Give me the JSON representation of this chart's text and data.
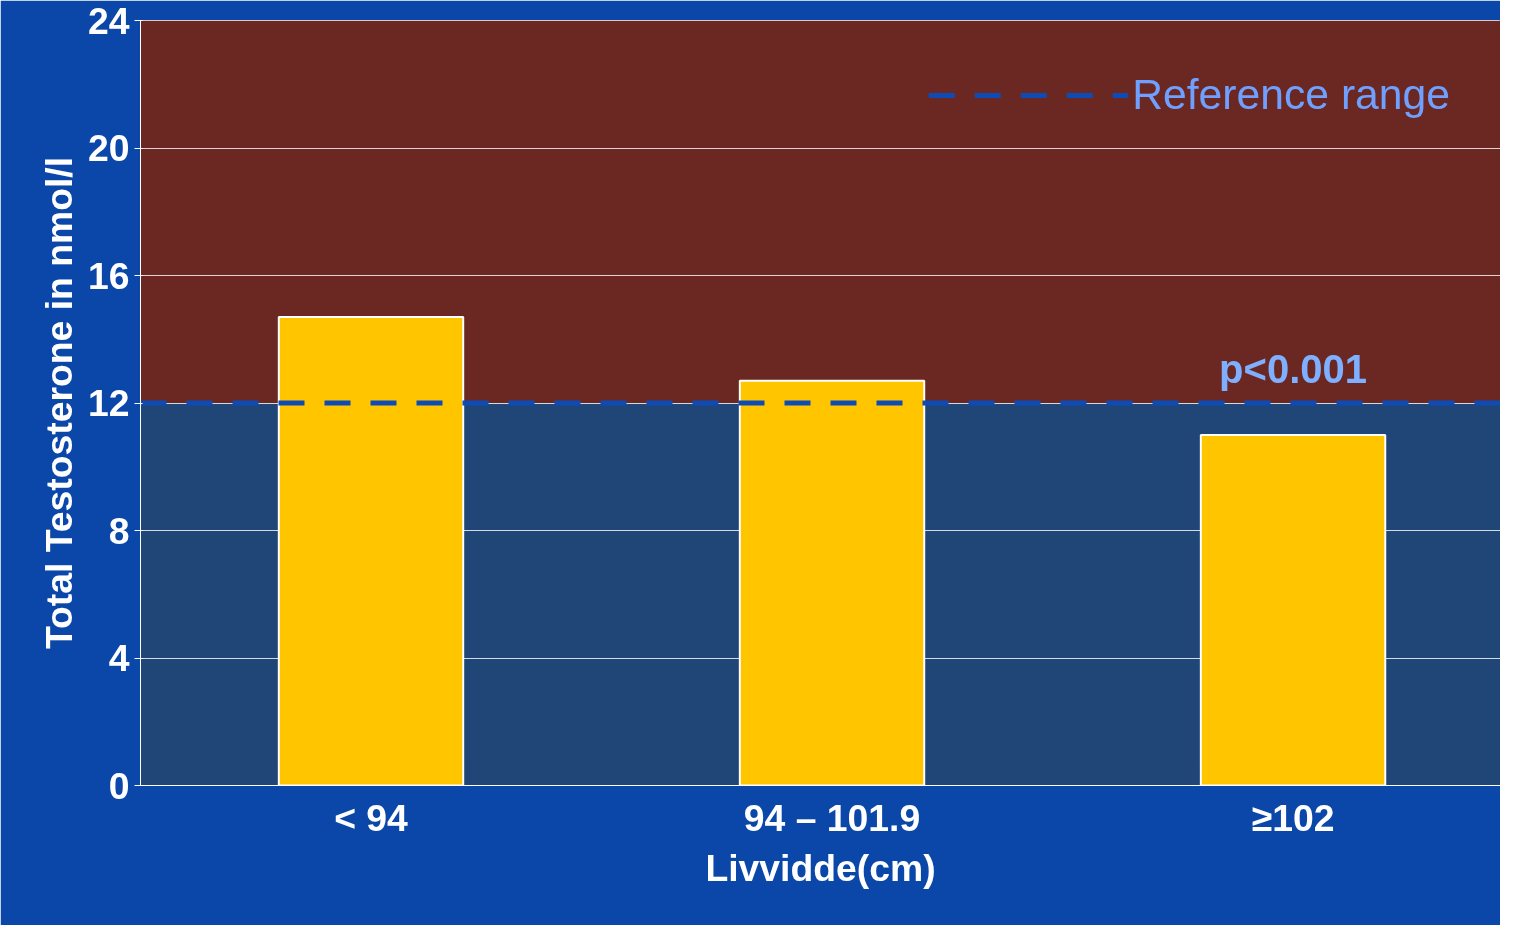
{
  "chart_data": {
    "type": "bar",
    "xlabel": "Livvidde(cm)",
    "ylabel": "Total Testosterone in nmol/l",
    "categories": [
      "< 94",
      "94 – 101.9",
      "≥102"
    ],
    "values": [
      14.7,
      12.7,
      11.0
    ],
    "color": "#ffc600",
    "ylim": [
      0,
      24
    ],
    "yticks": [
      0,
      4,
      8,
      12,
      16,
      20,
      24
    ],
    "grid": "y",
    "legend": "top right",
    "ref_lines": [
      {
        "axis": "y",
        "value": 12,
        "label": "Reference range",
        "color": "#0f4bb4",
        "line_style": "dashed"
      }
    ],
    "bands": [
      {
        "axis": "y",
        "from": 0,
        "to": 12,
        "color": "#1f4677"
      },
      {
        "axis": "y",
        "from": 12,
        "to": 24,
        "color": "#6b2822"
      }
    ],
    "annotations": [
      "p<0.001"
    ]
  }
}
